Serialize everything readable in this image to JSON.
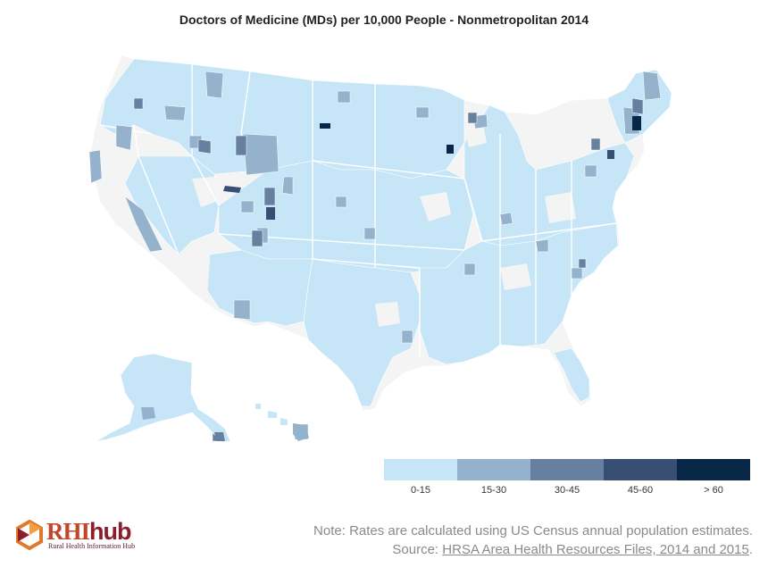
{
  "title": "Doctors of Medicine (MDs) per 10,000 People - Nonmetropolitan 2014",
  "legend": {
    "items": [
      {
        "label": "0-15",
        "color": "#c6e6f7"
      },
      {
        "label": "15-30",
        "color": "#94b2cb"
      },
      {
        "label": "30-45",
        "color": "#6780a0"
      },
      {
        "label": "45-60",
        "color": "#384f73"
      },
      {
        "label": "> 60",
        "color": "#082747"
      }
    ]
  },
  "colors": {
    "metro_background": "#f4f4f4",
    "state_border": "#ffffff",
    "logo_orange": "#e07a2a",
    "logo_red": "#8b1d2c"
  },
  "logo": {
    "brand_main": "RHI",
    "brand_hub": "hub",
    "subtitle": "Rural Health Information Hub"
  },
  "notes": {
    "line1": "Note: Rates are calculated using US Census annual population estimates.",
    "source_prefix": "Source: ",
    "source_link": "HRSA Area Health Resources Files, 2014 and 2015",
    "source_suffix": "."
  }
}
